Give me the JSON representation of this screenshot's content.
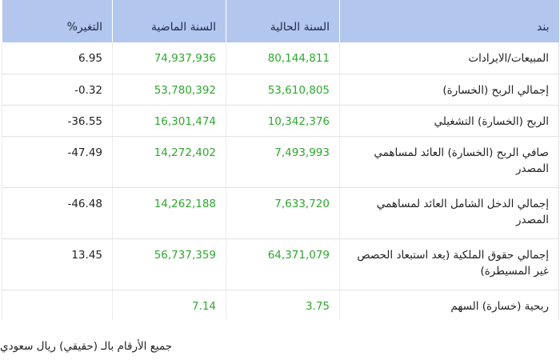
{
  "table": {
    "headers": {
      "item": "بند",
      "current": "السنة الحالية",
      "previous": "السنة الماضية",
      "change": "التغير%"
    },
    "rows": [
      {
        "item": "المبيعات/الايرادات",
        "current": "80,144,811",
        "previous": "74,937,936",
        "change": "6.95"
      },
      {
        "item": "إجمالي الربح (الخسارة)",
        "current": "53,610,805",
        "previous": "53,780,392",
        "change": "0.32-"
      },
      {
        "item": "الربح (الخسارة) التشغيلي",
        "current": "10,342,376",
        "previous": "16,301,474",
        "change": "36.55-"
      },
      {
        "item": "صافي الربح (الخسارة) العائد لمساهمي المصدر",
        "current": "7,493,993",
        "previous": "14,272,402",
        "change": "47.49-"
      },
      {
        "item": "إجمالي الدخل الشامل العائد لمساهمي المصدر",
        "current": "7,633,720",
        "previous": "14,262,188",
        "change": "46.48-"
      },
      {
        "item": "إجمالي حقوق الملكية (بعد استبعاد الحصص غير المسيطرة)",
        "current": "64,371,079",
        "previous": "56,737,359",
        "change": "13.45"
      },
      {
        "item": "ربحية (خسارة) السهم",
        "current": "3.75",
        "previous": "7.14",
        "change": ""
      }
    ]
  },
  "footnote": "جميع الأرقام بالـ (حقيقي) ريال سعودي",
  "colors": {
    "header_bg": "#b3c6ee",
    "number_green": "#2ea82e"
  }
}
